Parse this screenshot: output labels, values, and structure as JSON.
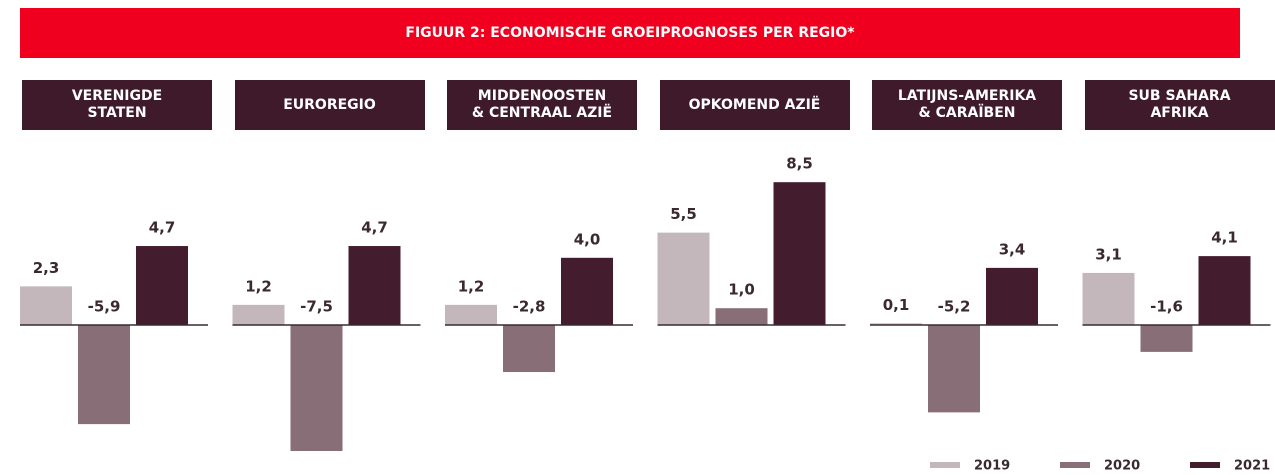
{
  "chart_data": {
    "type": "bar",
    "title": "FIGUUR 2: ECONOMISCHE GROEIPROGNOSES PER REGIO*",
    "categories": [
      "VERENIGDE\nSTATEN",
      "EUROREGIO",
      "MIDDENOOSTEN\n& CENTRAAL AZIË",
      "OPKOMEND AZIË",
      "LATIJNS-AMERIKA\n& CARAÏBEN",
      "SUB SAHARA\nAFRIKA"
    ],
    "series": [
      {
        "name": "2019",
        "color": "#c4b7bb",
        "values": [
          2.3,
          1.2,
          1.2,
          5.5,
          0.1,
          3.1
        ],
        "value_labels": [
          "2,3",
          "1,2",
          "1,2",
          "5,5",
          "0,1",
          "3,1"
        ]
      },
      {
        "name": "2020",
        "color": "#876e77",
        "values": [
          -5.9,
          -7.5,
          -2.8,
          1.0,
          -5.2,
          -1.6
        ],
        "value_labels": [
          "-5,9",
          "-7,5",
          "-2,8",
          "1,0",
          "-5,2",
          "-1,6"
        ]
      },
      {
        "name": "2021",
        "color": "#431c2d",
        "values": [
          4.7,
          4.7,
          4.0,
          8.5,
          3.4,
          4.1
        ],
        "value_labels": [
          "4,7",
          "4,7",
          "4,0",
          "8,5",
          "3,4",
          "4,1"
        ]
      }
    ],
    "legend": "bottom-right"
  }
}
